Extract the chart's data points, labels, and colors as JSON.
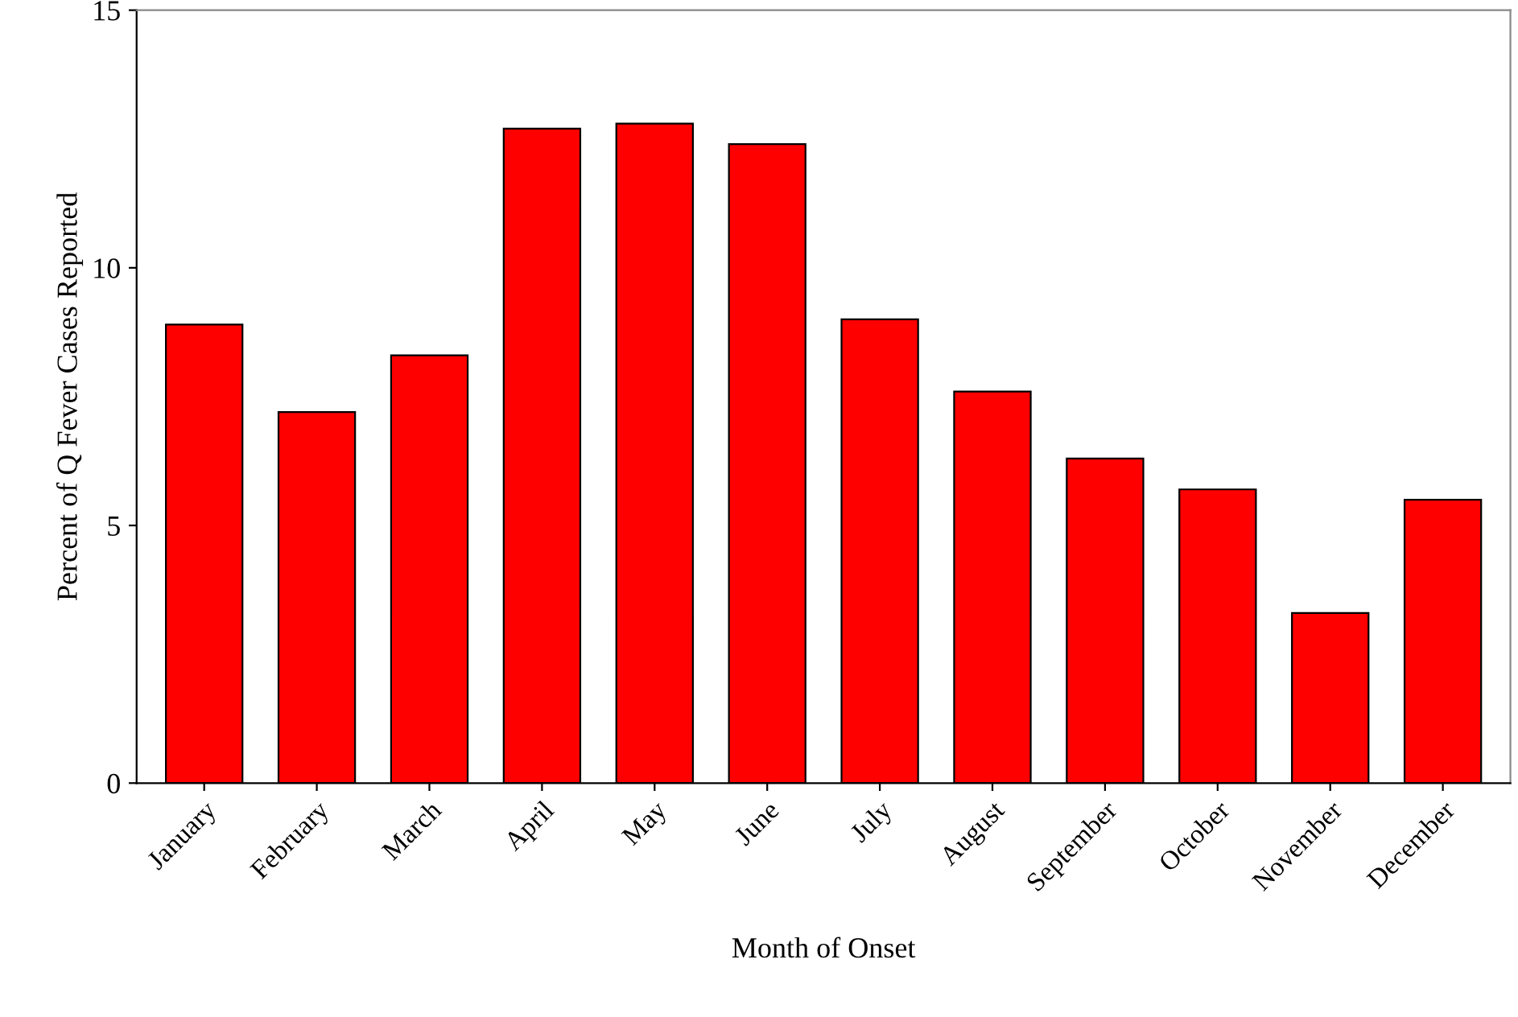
{
  "chart_data": {
    "type": "bar",
    "xlabel": "Month of Onset",
    "ylabel": "Percent of Q Fever Cases Reported",
    "categories": [
      "January",
      "February",
      "March",
      "April",
      "May",
      "June",
      "July",
      "August",
      "September",
      "October",
      "November",
      "December"
    ],
    "values": [
      8.9,
      7.2,
      8.3,
      12.7,
      12.8,
      12.4,
      9.0,
      7.6,
      6.3,
      5.7,
      3.3,
      5.5
    ],
    "color": "#ff0000",
    "ylim": [
      0,
      15
    ],
    "yticks": [
      0,
      5,
      10,
      15
    ],
    "grid": false
  }
}
